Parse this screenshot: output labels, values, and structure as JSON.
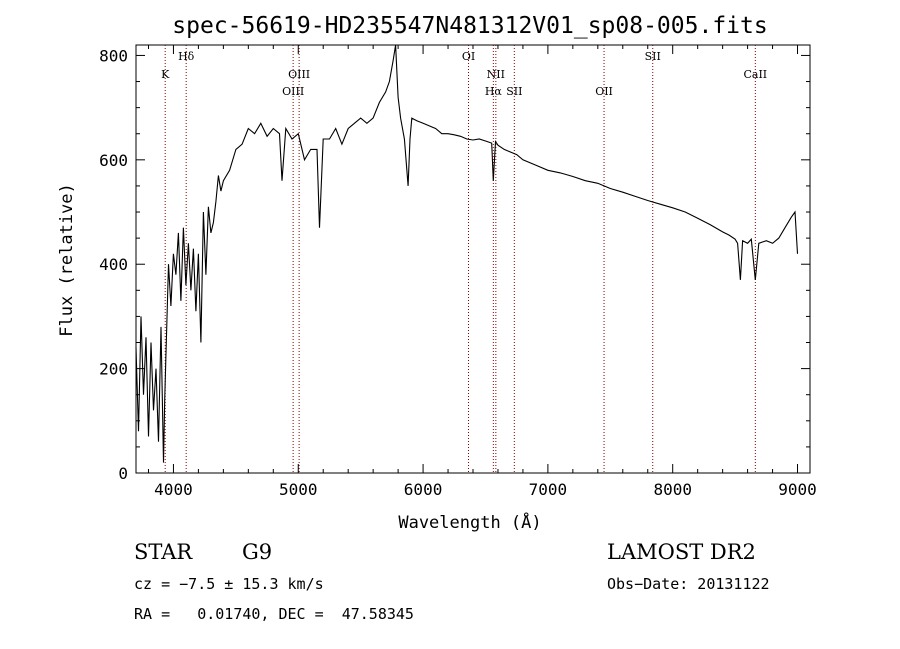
{
  "chart_data": {
    "type": "line",
    "title": "spec-56619-HD235547N481312V01_sp08-005.fits",
    "xlabel": "Wavelength (Å)",
    "ylabel": "Flux (relative)",
    "xlim": [
      3700,
      9100
    ],
    "ylim": [
      0,
      820
    ],
    "xticks": [
      4000,
      5000,
      6000,
      7000,
      8000,
      9000
    ],
    "yticks": [
      0,
      200,
      400,
      600,
      800
    ],
    "grid": false,
    "line_color": "#000000",
    "marker_line_color": "#8b0000",
    "series": [
      {
        "x": [
          3700,
          3720,
          3740,
          3760,
          3780,
          3800,
          3820,
          3840,
          3860,
          3880,
          3900,
          3920,
          3930,
          3940,
          3960,
          3980,
          4000,
          4020,
          4040,
          4060,
          4080,
          4100,
          4120,
          4140,
          4160,
          4180,
          4200,
          4220,
          4240,
          4260,
          4280,
          4300,
          4320,
          4340,
          4360,
          4380,
          4400,
          4450,
          4500,
          4550,
          4600,
          4650,
          4700,
          4750,
          4800,
          4850,
          4870,
          4900,
          4950,
          5000,
          5050,
          5100,
          5150,
          5170,
          5200,
          5250,
          5300,
          5350,
          5400,
          5450,
          5500,
          5550,
          5600,
          5650,
          5700,
          5730,
          5760,
          5780,
          5800,
          5820,
          5850,
          5880,
          5895,
          5910,
          5950,
          6000,
          6050,
          6100,
          6150,
          6200,
          6250,
          6300,
          6350,
          6400,
          6450,
          6500,
          6550,
          6563,
          6580,
          6600,
          6650,
          6700,
          6750,
          6800,
          6900,
          7000,
          7100,
          7200,
          7300,
          7400,
          7500,
          7600,
          7700,
          7800,
          7900,
          8000,
          8100,
          8200,
          8300,
          8400,
          8450,
          8500,
          8520,
          8542,
          8560,
          8600,
          8630,
          8662,
          8690,
          8750,
          8800,
          8850,
          8900,
          8950,
          8980,
          9000
        ],
        "y": [
          240,
          80,
          300,
          150,
          260,
          70,
          250,
          120,
          200,
          60,
          280,
          20,
          140,
          230,
          400,
          320,
          420,
          380,
          460,
          330,
          470,
          360,
          440,
          350,
          430,
          310,
          420,
          250,
          500,
          380,
          510,
          460,
          480,
          520,
          570,
          540,
          560,
          580,
          620,
          630,
          660,
          650,
          670,
          645,
          660,
          650,
          560,
          660,
          640,
          650,
          600,
          620,
          620,
          470,
          640,
          640,
          660,
          630,
          660,
          670,
          680,
          670,
          680,
          710,
          730,
          750,
          790,
          820,
          720,
          680,
          640,
          550,
          640,
          680,
          675,
          670,
          665,
          660,
          650,
          650,
          648,
          645,
          640,
          638,
          640,
          636,
          632,
          560,
          635,
          628,
          620,
          615,
          610,
          600,
          590,
          580,
          575,
          568,
          560,
          555,
          545,
          538,
          530,
          522,
          515,
          508,
          500,
          488,
          476,
          462,
          456,
          448,
          440,
          370,
          445,
          440,
          448,
          370,
          440,
          445,
          440,
          450,
          470,
          490,
          500,
          420
        ]
      }
    ],
    "lines": [
      {
        "name": "K",
        "x": 3934,
        "row": 1
      },
      {
        "name": "Hδ",
        "x": 4102,
        "row": 0
      },
      {
        "name": "OIII",
        "x": 4959,
        "row": 2
      },
      {
        "name": "OIII",
        "x": 5007,
        "row": 1
      },
      {
        "name": "OI",
        "x": 6364,
        "row": 0
      },
      {
        "name": "NII",
        "x": 6583,
        "row": 1
      },
      {
        "name": "Hα",
        "x": 6563,
        "row": 2
      },
      {
        "name": "SII",
        "x": 6731,
        "row": 2
      },
      {
        "name": "OII",
        "x": 7450,
        "row": 2
      },
      {
        "name": "SII",
        "x": 7840,
        "row": 0
      },
      {
        "name": "CaII",
        "x": 8662,
        "row": 1
      }
    ]
  },
  "info": {
    "object_type": "STAR",
    "subclass": "G9",
    "survey": "LAMOST DR2",
    "cz": "cz = −7.5 ± 15.3 km/s",
    "obs_date": "Obs−Date: 20131122",
    "radec": "RA =   0.01740, DEC =  47.58345"
  }
}
